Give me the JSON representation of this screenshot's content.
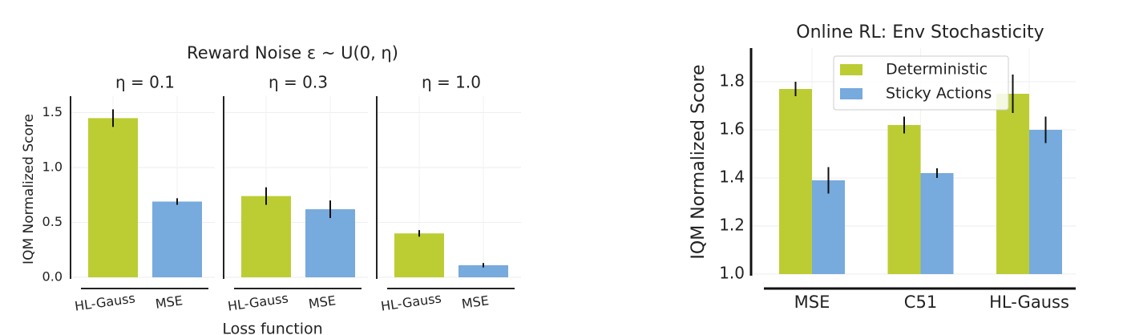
{
  "chart_data": [
    {
      "type": "panel_bar",
      "title": "Reward Noise ε ~ U(0, η)",
      "y_label": "IQM Normalized Score",
      "x_label": "Loss function",
      "ylim": [
        0,
        1.65
      ],
      "yticks": [
        {
          "value": 0,
          "label": "0.0"
        },
        0.5,
        {
          "value": 1,
          "label": "1.0"
        },
        1.5
      ],
      "grid": true,
      "colors": [
        "#bccd33",
        "#77aadd"
      ],
      "panels": [
        {
          "title": "η = 0.1",
          "categories": [
            "HL-Gauss",
            "MSE"
          ],
          "values": [
            1.45,
            0.69
          ],
          "errors": [
            0.08,
            0.03
          ]
        },
        {
          "title": "η = 0.3",
          "categories": [
            "HL-Gauss",
            "MSE"
          ],
          "values": [
            0.74,
            0.62
          ],
          "errors": [
            0.08,
            0.08
          ]
        },
        {
          "title": "η = 1.0",
          "categories": [
            "HL-Gauss",
            "MSE"
          ],
          "values": [
            0.4,
            0.11
          ],
          "errors": [
            0.03,
            0.02
          ]
        }
      ]
    },
    {
      "type": "grouped_bar",
      "title": "Online RL: Env Stochasticity",
      "y_label": "IQM Normalized Score",
      "categories": [
        "MSE",
        "C51",
        "HL-Gauss"
      ],
      "ylim": [
        1.0,
        1.94
      ],
      "yticks": [
        {
          "value": 1.0,
          "label": "1.0"
        },
        1.2,
        1.4,
        1.6,
        1.8
      ],
      "grid": true,
      "legend": "top",
      "series": [
        {
          "name": "Deterministic",
          "color": "#bccd33",
          "values": [
            1.77,
            1.62,
            1.75
          ],
          "errors": [
            0.03,
            0.035,
            0.08
          ]
        },
        {
          "name": "Sticky Actions",
          "color": "#77aadd",
          "values": [
            1.39,
            1.42,
            1.6
          ],
          "errors": [
            0.055,
            0.02,
            0.055
          ]
        }
      ]
    }
  ]
}
